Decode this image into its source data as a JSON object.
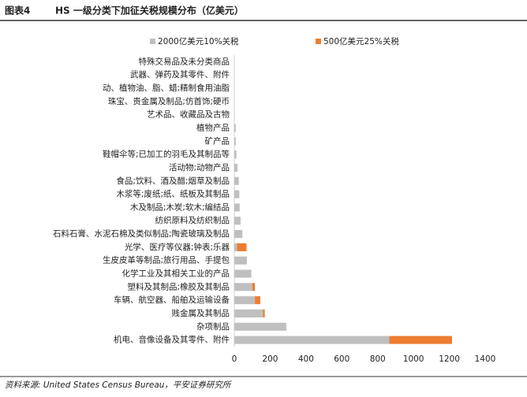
{
  "chart_data": {
    "type": "stacked-bar-horizontal",
    "label": "图表4",
    "title": "HS 一级分类下加征关税规模分布（亿美元）",
    "source": "资料来源: United States Census Bureau，平安证券研究所",
    "categories": [
      "特殊交易品及未分类商品",
      "武器、弹药及其零件、附件",
      "动、植物油、脂、蜡;精制食用油脂",
      "珠宝、贵金属及制品;仿首饰;硬币",
      "艺术品、收藏品及古物",
      "植物产品",
      "矿产品",
      "鞋帽伞等;已加工的羽毛及其制品等",
      "活动物;动物产品",
      "食品;饮料、酒及醋;烟草及制品",
      "木浆等;废纸;纸、纸板及其制品",
      "木及制品;木炭;软木;编结品",
      "纺织原料及纺织制品",
      "石料石膏、水泥石棉及类似制品;陶瓷玻璃及制品",
      "光学、医疗等仪器;钟表;乐器",
      "生皮皮革等制品;旅行用品、手提包",
      "化学工业及其相关工业的产品",
      "塑料及其制品;橡胶及其制品",
      "车辆、航空器、船舶及运输设备",
      "贱金属及其制品",
      "杂项制品",
      "机电、音像设备及其零件、附件"
    ],
    "series": [
      {
        "name": "2000亿美元10%关税",
        "color": "#bfbfbf",
        "values": [
          0,
          0,
          1,
          1,
          2,
          8,
          8,
          12,
          18,
          25,
          28,
          30,
          35,
          45,
          15,
          70,
          95,
          100,
          115,
          160,
          290,
          865
        ]
      },
      {
        "name": "500亿美元25%关税",
        "color": "#ed7d31",
        "values": [
          0,
          0,
          0,
          0,
          0,
          0,
          0,
          0,
          0,
          0,
          0,
          0,
          0,
          0,
          53,
          0,
          0,
          15,
          30,
          10,
          0,
          350
        ]
      }
    ],
    "xlim": [
      0,
      1400
    ],
    "xticks": [
      0,
      200,
      400,
      600,
      800,
      1000,
      1200,
      1400
    ]
  }
}
